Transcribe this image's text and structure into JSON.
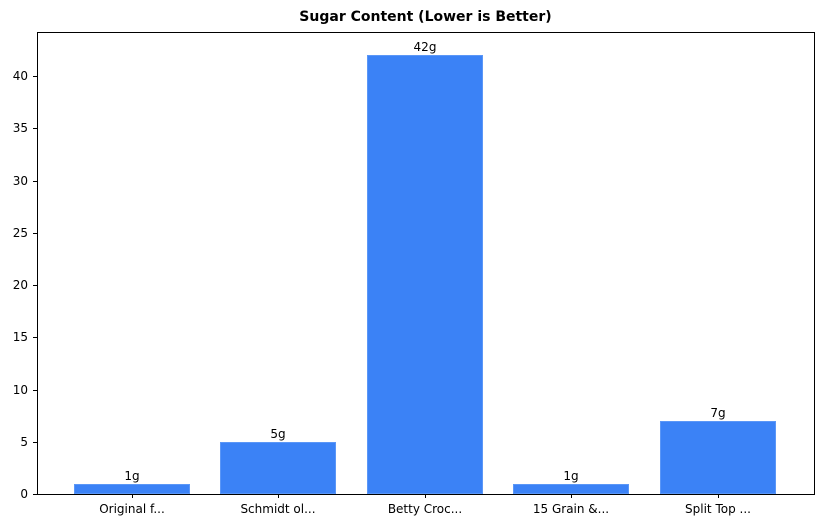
{
  "chart_data": {
    "type": "bar",
    "title": "Sugar Content (Lower is Better)",
    "xlabel": "",
    "ylabel": "",
    "categories": [
      "Original f...",
      "Schmidt ol...",
      "Betty Croc...",
      "15 Grain &...",
      "Split Top ..."
    ],
    "values": [
      1,
      5,
      42,
      1,
      7
    ],
    "bar_labels": [
      "1g",
      "5g",
      "42g",
      "1g",
      "7g"
    ],
    "yticks": [
      0,
      5,
      10,
      15,
      20,
      25,
      30,
      35,
      40
    ],
    "ylim": [
      0,
      44.1
    ],
    "grid": false,
    "legend": null,
    "bar_color": "#3b82f6"
  }
}
